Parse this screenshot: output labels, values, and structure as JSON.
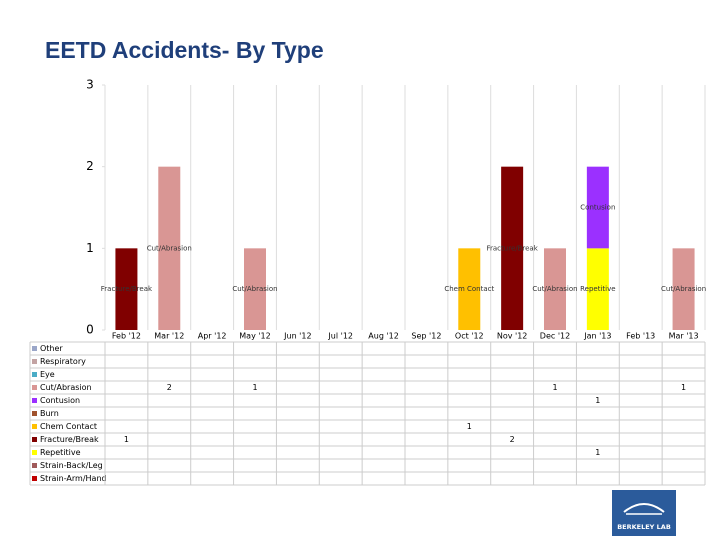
{
  "chart_data": {
    "type": "stacked_bar",
    "title": "EETD Accidents- By Type",
    "logo_text": "BERKELEY LAB",
    "categories": [
      "Feb '12",
      "Mar '12",
      "Apr '12",
      "May '12",
      "Jun '12",
      "Jul '12",
      "Aug '12",
      "Sep '12",
      "Oct '12",
      "Nov '12",
      "Dec '12",
      "Jan '13",
      "Feb '13",
      "Mar '13"
    ],
    "ylim": [
      0,
      3
    ],
    "yticks": [
      0,
      1,
      2,
      3
    ],
    "series": [
      {
        "name": "Other",
        "color": "#9aa6c8",
        "values": [
          null,
          null,
          null,
          null,
          null,
          null,
          null,
          null,
          null,
          null,
          null,
          null,
          null,
          null
        ]
      },
      {
        "name": "Respiratory",
        "color": "#c3a3a3",
        "values": [
          null,
          null,
          null,
          null,
          null,
          null,
          null,
          null,
          null,
          null,
          null,
          null,
          null,
          null
        ]
      },
      {
        "name": "Eye",
        "color": "#4bacc6",
        "values": [
          null,
          null,
          null,
          null,
          null,
          null,
          null,
          null,
          null,
          null,
          null,
          null,
          null,
          null
        ]
      },
      {
        "name": "Cut/Abrasion",
        "color": "#d99694",
        "values": [
          null,
          2,
          null,
          1,
          null,
          null,
          null,
          null,
          null,
          null,
          1,
          null,
          null,
          1
        ]
      },
      {
        "name": "Contusion",
        "color": "#9b30ff",
        "values": [
          null,
          null,
          null,
          null,
          null,
          null,
          null,
          null,
          null,
          null,
          null,
          1,
          null,
          null
        ]
      },
      {
        "name": "Burn",
        "color": "#a0522d",
        "values": [
          null,
          null,
          null,
          null,
          null,
          null,
          null,
          null,
          null,
          null,
          null,
          null,
          null,
          null
        ]
      },
      {
        "name": "Chem Contact",
        "color": "#ffc000",
        "values": [
          null,
          null,
          null,
          null,
          null,
          null,
          null,
          null,
          1,
          null,
          null,
          null,
          null,
          null
        ]
      },
      {
        "name": "Fracture/Break",
        "color": "#800000",
        "values": [
          1,
          null,
          null,
          null,
          null,
          null,
          null,
          null,
          null,
          2,
          null,
          null,
          null,
          null
        ]
      },
      {
        "name": "Repetitive",
        "color": "#ffff00",
        "values": [
          null,
          null,
          null,
          null,
          null,
          null,
          null,
          null,
          null,
          null,
          null,
          1,
          null,
          null
        ]
      },
      {
        "name": "Strain-Back/Leg",
        "color": "#a05a5a",
        "values": [
          null,
          null,
          null,
          null,
          null,
          null,
          null,
          null,
          null,
          null,
          null,
          null,
          null,
          null
        ]
      },
      {
        "name": "Strain-Arm/Hand",
        "color": "#c00000",
        "values": [
          null,
          null,
          null,
          null,
          null,
          null,
          null,
          null,
          null,
          null,
          null,
          null,
          null,
          null
        ]
      }
    ]
  }
}
